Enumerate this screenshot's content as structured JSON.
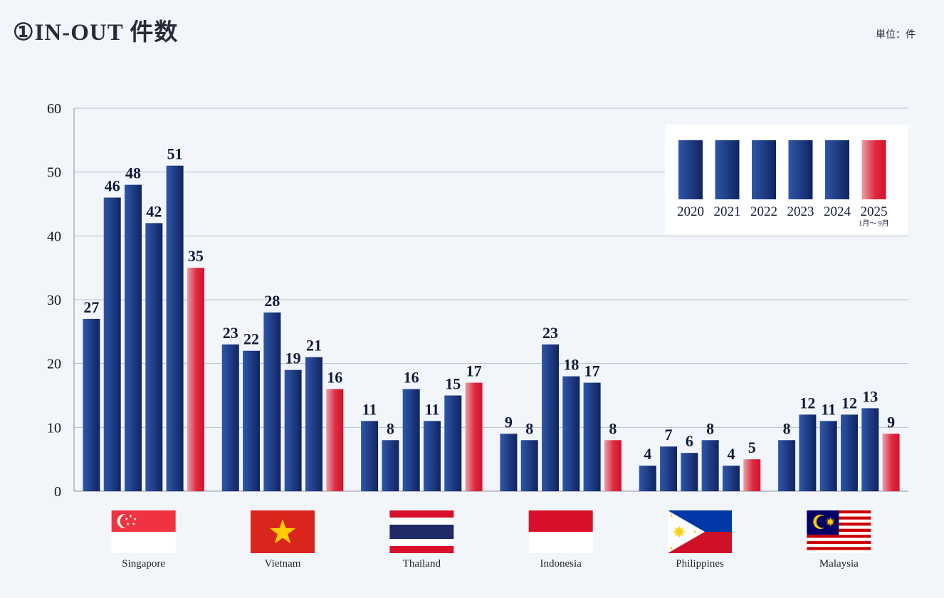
{
  "header": {
    "title": "①IN-OUT 件数",
    "unit": "単位：件"
  },
  "colors": {
    "navy_dark": "#0f2460",
    "navy_light": "#2f56a8",
    "red_dark": "#d8112a",
    "red_light": "#e8a0a8",
    "grid": "#b9c0c9",
    "background": "#f2f6fa"
  },
  "chart_data": {
    "type": "bar",
    "categories": [
      "Singapore",
      "Vietnam",
      "Thailand",
      "Indonesia",
      "Philippines",
      "Malaysia"
    ],
    "category_icons": [
      "singapore-flag-icon",
      "vietnam-flag-icon",
      "thailand-flag-icon",
      "indonesia-flag-icon",
      "philippines-flag-icon",
      "malaysia-flag-icon"
    ],
    "series": [
      {
        "name": "2020",
        "values": [
          27,
          23,
          11,
          9,
          4,
          8
        ]
      },
      {
        "name": "2021",
        "values": [
          46,
          22,
          8,
          8,
          7,
          12
        ]
      },
      {
        "name": "2022",
        "values": [
          48,
          28,
          16,
          23,
          6,
          11
        ]
      },
      {
        "name": "2023",
        "values": [
          42,
          19,
          11,
          18,
          8,
          12
        ]
      },
      {
        "name": "2024",
        "values": [
          51,
          21,
          15,
          17,
          4,
          13
        ]
      },
      {
        "name": "2025",
        "note": "1月～ 9月",
        "values": [
          35,
          16,
          17,
          8,
          5,
          9
        ]
      }
    ],
    "ylim": [
      0,
      60
    ],
    "yticks": [
      0,
      10,
      20,
      30,
      40,
      50,
      60
    ],
    "grid": true,
    "legend_position": "top-right"
  }
}
